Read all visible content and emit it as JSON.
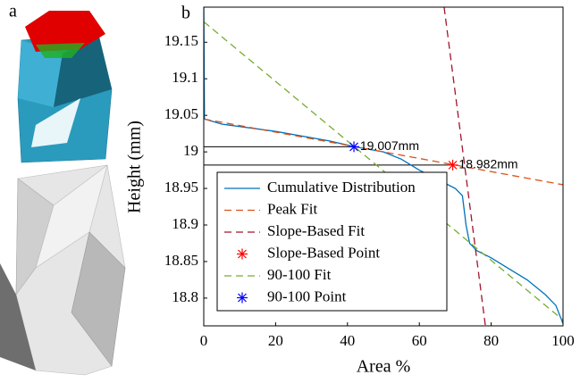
{
  "chart_data": {
    "type": "line",
    "panel_labels": [
      "a",
      "b"
    ],
    "xlabel": "Area %",
    "ylabel": "Height (mm)",
    "xlim": [
      0,
      100
    ],
    "ylim": [
      18.762,
      19.198
    ],
    "xticks": [
      0,
      20,
      40,
      60,
      80,
      100
    ],
    "yticks": [
      18.8,
      18.85,
      18.9,
      18.95,
      19,
      19.05,
      19.1,
      19.15
    ],
    "legend": "lower-left",
    "series": [
      {
        "name": "Cumulative Distribution",
        "color": "#0072BD",
        "style": "solid",
        "x": [
          0,
          0.2,
          5,
          20,
          35,
          42,
          50,
          55,
          60,
          66,
          70,
          72,
          73,
          74,
          76,
          80,
          85,
          90,
          95,
          98,
          100
        ],
        "values": [
          19.198,
          19.045,
          19.038,
          19.028,
          19.015,
          19.007,
          19.0,
          18.99,
          18.975,
          18.96,
          18.95,
          18.94,
          18.9,
          18.875,
          18.865,
          18.855,
          18.84,
          18.825,
          18.805,
          18.79,
          18.765
        ]
      },
      {
        "name": "Peak Fit",
        "color": "#D95319",
        "style": "dashed",
        "x": [
          0,
          100
        ],
        "values": [
          19.045,
          18.955
        ]
      },
      {
        "name": "Slope-Based Fit",
        "color": "#A2142F",
        "style": "dashed",
        "x": [
          66.9,
          78.4
        ],
        "values": [
          19.198,
          18.762
        ]
      },
      {
        "name": "Slope-Based Point",
        "color": "#FF0000",
        "style": "marker",
        "x": [
          69.3
        ],
        "values": [
          18.982
        ]
      },
      {
        "name": "90-100 Fit",
        "color": "#77AC30",
        "style": "dashed",
        "x": [
          0,
          100
        ],
        "values": [
          19.178,
          18.77
        ]
      },
      {
        "name": "90-100 Point",
        "color": "#0000FF",
        "style": "marker",
        "x": [
          41.8
        ],
        "values": [
          19.007
        ]
      }
    ],
    "annotations": [
      {
        "text": "19.007mm",
        "x": 43.5,
        "y": 19.007
      },
      {
        "text": "18.982mm",
        "x": 71,
        "y": 18.982
      }
    ]
  }
}
